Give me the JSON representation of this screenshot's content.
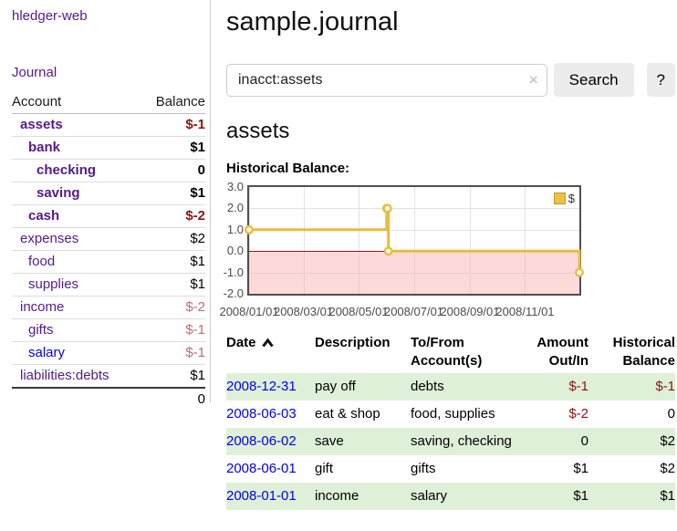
{
  "sidebar": {
    "brand": "hledger-web",
    "journal_link": "Journal",
    "accounts_table": {
      "header_account": "Account",
      "header_balance": "Balance",
      "rows": [
        {
          "name": "assets",
          "depth": 1,
          "bold": true,
          "balance": "$-1",
          "neg": "strong",
          "link": "purple"
        },
        {
          "name": "bank",
          "depth": 2,
          "bold": true,
          "balance": "$1",
          "neg": "none",
          "link": "purple"
        },
        {
          "name": "checking",
          "depth": 3,
          "bold": true,
          "balance": "0",
          "neg": "none",
          "link": "purple"
        },
        {
          "name": "saving",
          "depth": 3,
          "bold": true,
          "balance": "$1",
          "neg": "none",
          "link": "purple"
        },
        {
          "name": "cash",
          "depth": 2,
          "bold": true,
          "balance": "$-2",
          "neg": "strong",
          "link": "purple"
        },
        {
          "name": "expenses",
          "depth": 1,
          "bold": false,
          "balance": "$2",
          "neg": "none",
          "link": "purple"
        },
        {
          "name": "food",
          "depth": 2,
          "bold": false,
          "balance": "$1",
          "neg": "none",
          "link": "purple"
        },
        {
          "name": "supplies",
          "depth": 2,
          "bold": false,
          "balance": "$1",
          "neg": "none",
          "link": "purple"
        },
        {
          "name": "income",
          "depth": 1,
          "bold": false,
          "balance": "$-2",
          "neg": "muted",
          "link": "purple"
        },
        {
          "name": "gifts",
          "depth": 2,
          "bold": false,
          "balance": "$-1",
          "neg": "muted",
          "link": "purple"
        },
        {
          "name": "salary",
          "depth": 2,
          "bold": false,
          "balance": "$-1",
          "neg": "muted",
          "link": "blue"
        },
        {
          "name": "liabilities:debts",
          "depth": 1,
          "bold": false,
          "balance": "$1",
          "neg": "none",
          "link": "purple"
        }
      ],
      "total": "0"
    }
  },
  "header": {
    "title": "sample.journal"
  },
  "search": {
    "value": "inacct:assets",
    "clear_icon": "×",
    "search_label": "Search",
    "help_label": "?"
  },
  "account_page": {
    "heading": "assets",
    "chart_title": "Historical Balance:"
  },
  "chart_data": {
    "type": "line",
    "step": true,
    "title": "Historical Balance:",
    "legend": {
      "label": "$",
      "position": "top-right"
    },
    "series": [
      {
        "name": "$",
        "points": [
          {
            "x": "2008-01-01",
            "y": 1
          },
          {
            "x": "2008-06-01",
            "y": 2
          },
          {
            "x": "2008-06-02",
            "y": 2
          },
          {
            "x": "2008-06-03",
            "y": 0
          },
          {
            "x": "2008-12-31",
            "y": -1
          }
        ]
      }
    ],
    "xlim": [
      "2008-01-01",
      "2008-12-31"
    ],
    "ylim": [
      -2,
      3
    ],
    "x_tick_labels": [
      "2008/01/01",
      "2008/03/01",
      "2008/05/01",
      "2008/07/01",
      "2008/09/01",
      "2008/11/01"
    ],
    "x_tick_dates": [
      "2008-01-01",
      "2008-03-01",
      "2008-05-01",
      "2008-07-01",
      "2008-09-01",
      "2008-11-01"
    ],
    "y_ticks": [
      3.0,
      2.0,
      1.0,
      0.0,
      -1.0,
      -2.0
    ],
    "grid": true,
    "negative_region": true
  },
  "transactions": {
    "headers": {
      "date": "Date",
      "description": "Description",
      "accounts": "To/From Account(s)",
      "amount": "Amount Out/In",
      "balance": "Historical Balance"
    },
    "sort_icon": "chevron-up",
    "rows": [
      {
        "date": "2008-12-31",
        "description": "pay off",
        "accounts": "debts",
        "amount": "$-1",
        "amount_neg": true,
        "balance": "$-1",
        "balance_neg": true
      },
      {
        "date": "2008-06-03",
        "description": "eat & shop",
        "accounts": "food, supplies",
        "amount": "$-2",
        "amount_neg": true,
        "balance": "0",
        "balance_neg": false
      },
      {
        "date": "2008-06-02",
        "description": "save",
        "accounts": "saving, checking",
        "amount": "0",
        "amount_neg": false,
        "balance": "$2",
        "balance_neg": false
      },
      {
        "date": "2008-06-01",
        "description": "gift",
        "accounts": "gifts",
        "amount": "$1",
        "amount_neg": false,
        "balance": "$2",
        "balance_neg": false
      },
      {
        "date": "2008-01-01",
        "description": "income",
        "accounts": "salary",
        "amount": "$1",
        "amount_neg": false,
        "balance": "$1",
        "balance_neg": false
      }
    ]
  },
  "colors": {
    "link_purple": "#551a8b",
    "link_blue": "#0000ee",
    "negative_strong": "#8b1414",
    "negative_muted": "#c06b74",
    "row_stripe_green": "#dff0d8",
    "chart_line_gold": "#e8bd3e",
    "chart_negative_fill": "#fbdcdc",
    "chart_zero_line": "#9a1212"
  }
}
